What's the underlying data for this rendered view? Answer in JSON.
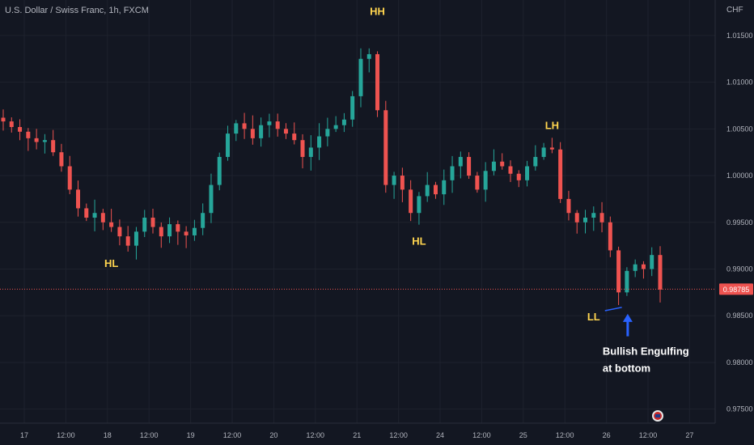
{
  "title": "U.S. Dollar / Swiss Franc, 1h, FXCM",
  "currency": "CHF",
  "colors": {
    "background": "#131722",
    "up": "#26a69a",
    "down": "#ef5350",
    "grid": "#1e222d",
    "label": "#ffd54f",
    "arrow": "#2962ff",
    "axis_text": "#b2b5be"
  },
  "icons": {
    "event_marker": "us-flag-icon"
  },
  "chart_data": {
    "type": "candlestick",
    "ylim": [
      0.9735,
      1.0188
    ],
    "y_ticks": [
      "1.01500",
      "1.01000",
      "1.00500",
      "1.00000",
      "0.99500",
      "0.99000",
      "0.98500",
      "0.98000",
      "0.97500"
    ],
    "x_ticks": [
      "17",
      "12:00",
      "18",
      "12:00",
      "19",
      "12:00",
      "20",
      "12:00",
      "21",
      "12:00",
      "24",
      "12:00",
      "25",
      "12:00",
      "26",
      "12:00",
      "27"
    ],
    "last_price": "0.98785",
    "close_series": [
      1.0058,
      1.0052,
      1.0047,
      1.004,
      1.0036,
      1.0038,
      1.0025,
      1.001,
      0.9985,
      0.9965,
      0.9955,
      0.996,
      0.995,
      0.9945,
      0.9935,
      0.9925,
      0.994,
      0.9955,
      0.9945,
      0.9935,
      0.9948,
      0.994,
      0.9936,
      0.9944,
      0.996,
      0.999,
      1.002,
      1.0045,
      1.0056,
      1.005,
      1.004,
      1.0054,
      1.0058,
      1.005,
      1.0045,
      1.0038,
      1.002,
      1.003,
      1.0042,
      1.005,
      1.0054,
      1.006,
      1.0085,
      1.0125,
      1.013,
      1.007,
      0.999,
      1.0,
      0.9985,
      0.996,
      0.9978,
      0.999,
      0.998,
      0.9995,
      1.001,
      1.002,
      1.0,
      0.9985,
      1.0005,
      1.0015,
      1.001,
      1.0002,
      0.9995,
      1.001,
      1.002,
      1.003,
      1.0028,
      0.9975,
      0.996,
      0.995,
      0.9955,
      0.996,
      0.995,
      0.992,
      0.9875,
      0.9898,
      0.9905,
      0.99,
      0.9915,
      0.9878
    ],
    "annotations": [
      {
        "text": "HH",
        "x_index": 45,
        "y": 1.0172
      },
      {
        "text": "HL",
        "x_index": 13,
        "y": 0.9902
      },
      {
        "text": "HL",
        "x_index": 50,
        "y": 0.9926
      },
      {
        "text": "LH",
        "x_index": 66,
        "y": 1.005
      },
      {
        "text": "LL",
        "x_index": 71,
        "y": 0.9845
      },
      {
        "text": "Bullish Engulfing",
        "x_index": 75,
        "y": 0.9808
      },
      {
        "text": "at bottom",
        "x_index": 75,
        "y": 0.979
      }
    ]
  }
}
